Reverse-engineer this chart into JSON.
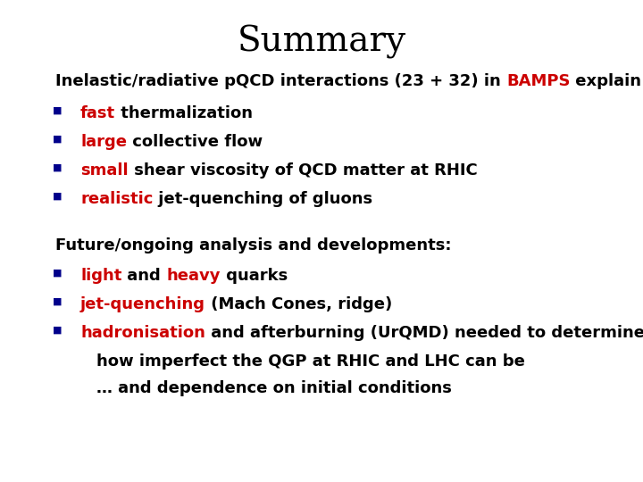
{
  "title": "Summary",
  "title_fontsize": 28,
  "title_font": "DejaVu Serif",
  "bg_color": "#ffffff",
  "text_color": "#000000",
  "red_color": "#cc0000",
  "bullet_color": "#00008b",
  "font_size": 13,
  "bold_font": true,
  "intro_parts": [
    {
      "text": "Inelastic/radiative pQCD interactions (23 + 32) in ",
      "color": "#000000"
    },
    {
      "text": "BAMPS",
      "color": "#cc0000"
    },
    {
      "text": " explain:",
      "color": "#000000"
    }
  ],
  "bullets1": [
    [
      {
        "text": "fast",
        "color": "#cc0000"
      },
      {
        "text": " thermalization",
        "color": "#000000"
      }
    ],
    [
      {
        "text": "large",
        "color": "#cc0000"
      },
      {
        "text": " collective flow",
        "color": "#000000"
      }
    ],
    [
      {
        "text": "small",
        "color": "#cc0000"
      },
      {
        "text": " shear viscosity of QCD matter at RHIC",
        "color": "#000000"
      }
    ],
    [
      {
        "text": "realistic",
        "color": "#cc0000"
      },
      {
        "text": " jet-quenching of gluons",
        "color": "#000000"
      }
    ]
  ],
  "section2_line": "Future/ongoing analysis and developments:",
  "bullets2": [
    [
      {
        "text": "light",
        "color": "#cc0000"
      },
      {
        "text": " and ",
        "color": "#000000"
      },
      {
        "text": "heavy",
        "color": "#cc0000"
      },
      {
        "text": " quarks",
        "color": "#000000"
      }
    ],
    [
      {
        "text": "jet-quenching",
        "color": "#cc0000"
      },
      {
        "text": " (Mach Cones, ridge)",
        "color": "#000000"
      }
    ],
    [
      {
        "text": "hadronisation",
        "color": "#cc0000"
      },
      {
        "text": " and afterburning (UrQMD) needed to determine",
        "color": "#000000"
      }
    ]
  ],
  "continuation_lines": [
    "how imperfect the QGP at RHIC and LHC can be",
    "… and dependence on initial conditions"
  ]
}
